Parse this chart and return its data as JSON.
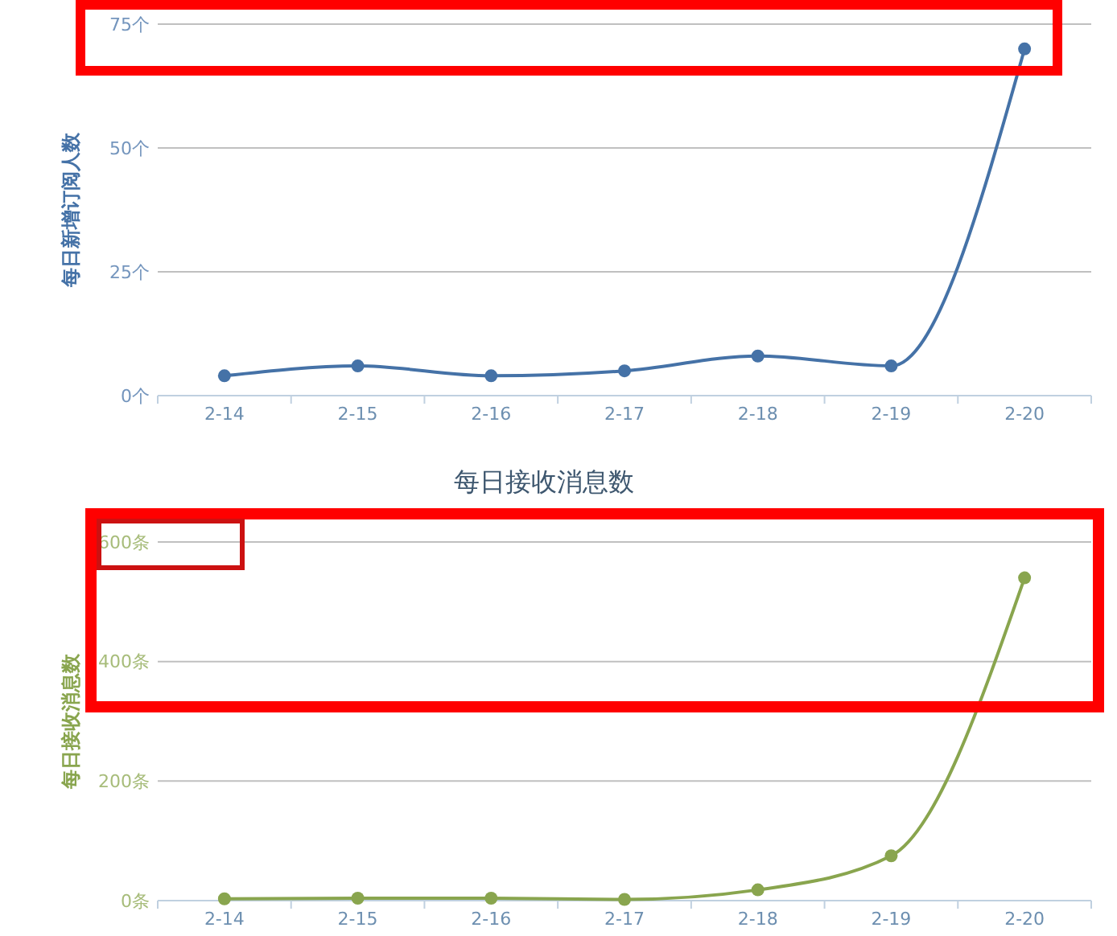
{
  "chart_data": [
    {
      "type": "line",
      "ylabel": "每日新增订阅人数",
      "categories": [
        "2-14",
        "2-15",
        "2-16",
        "2-17",
        "2-18",
        "2-19",
        "2-20"
      ],
      "series": [
        {
          "color": "#4572a7",
          "values": [
            4,
            6,
            4,
            5,
            8,
            6,
            70
          ]
        }
      ],
      "ylim": [
        0,
        75
      ],
      "yticks": [
        {
          "value": 0,
          "label": "0个"
        },
        {
          "value": 25,
          "label": "25个"
        },
        {
          "value": 50,
          "label": "50个"
        },
        {
          "value": 75,
          "label": "75个"
        }
      ],
      "grid": "y",
      "marker": "circle"
    },
    {
      "type": "line",
      "title": "每日接收消息数",
      "ylabel": "每日接收消息数",
      "categories": [
        "2-14",
        "2-15",
        "2-16",
        "2-17",
        "2-18",
        "2-19",
        "2-20"
      ],
      "series": [
        {
          "color": "#89a54e",
          "values": [
            3,
            4,
            4,
            2,
            18,
            75,
            540
          ]
        }
      ],
      "ylim": [
        0,
        600
      ],
      "yticks": [
        {
          "value": 0,
          "label": "0条"
        },
        {
          "value": 200,
          "label": "200条"
        },
        {
          "value": 400,
          "label": "400条"
        },
        {
          "value": 600,
          "label": "600条"
        }
      ],
      "grid": "y",
      "marker": "circle"
    }
  ]
}
